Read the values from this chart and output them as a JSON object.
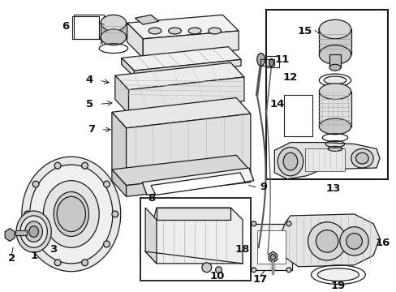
{
  "bg_color": "#ffffff",
  "line_color": "#1a1a1a",
  "fig_width": 4.89,
  "fig_height": 3.6,
  "dpi": 100,
  "label_fontsize": 9.5,
  "lw_main": 0.9,
  "lw_thin": 0.45,
  "lw_thick": 1.4,
  "parts": {
    "valve_cover_top": {
      "color": "#e8e8e8"
    },
    "cylinder_head": {
      "color": "#e4e4e4"
    },
    "engine_block": {
      "color": "#e0e0e0"
    },
    "timing_cover": {
      "color": "#e6e6e6"
    },
    "pulley": {
      "color": "#d8d8d8"
    },
    "box_fill": {
      "color": "#f5f5f5"
    },
    "gasket": {
      "color": "#f0f0f0"
    }
  }
}
